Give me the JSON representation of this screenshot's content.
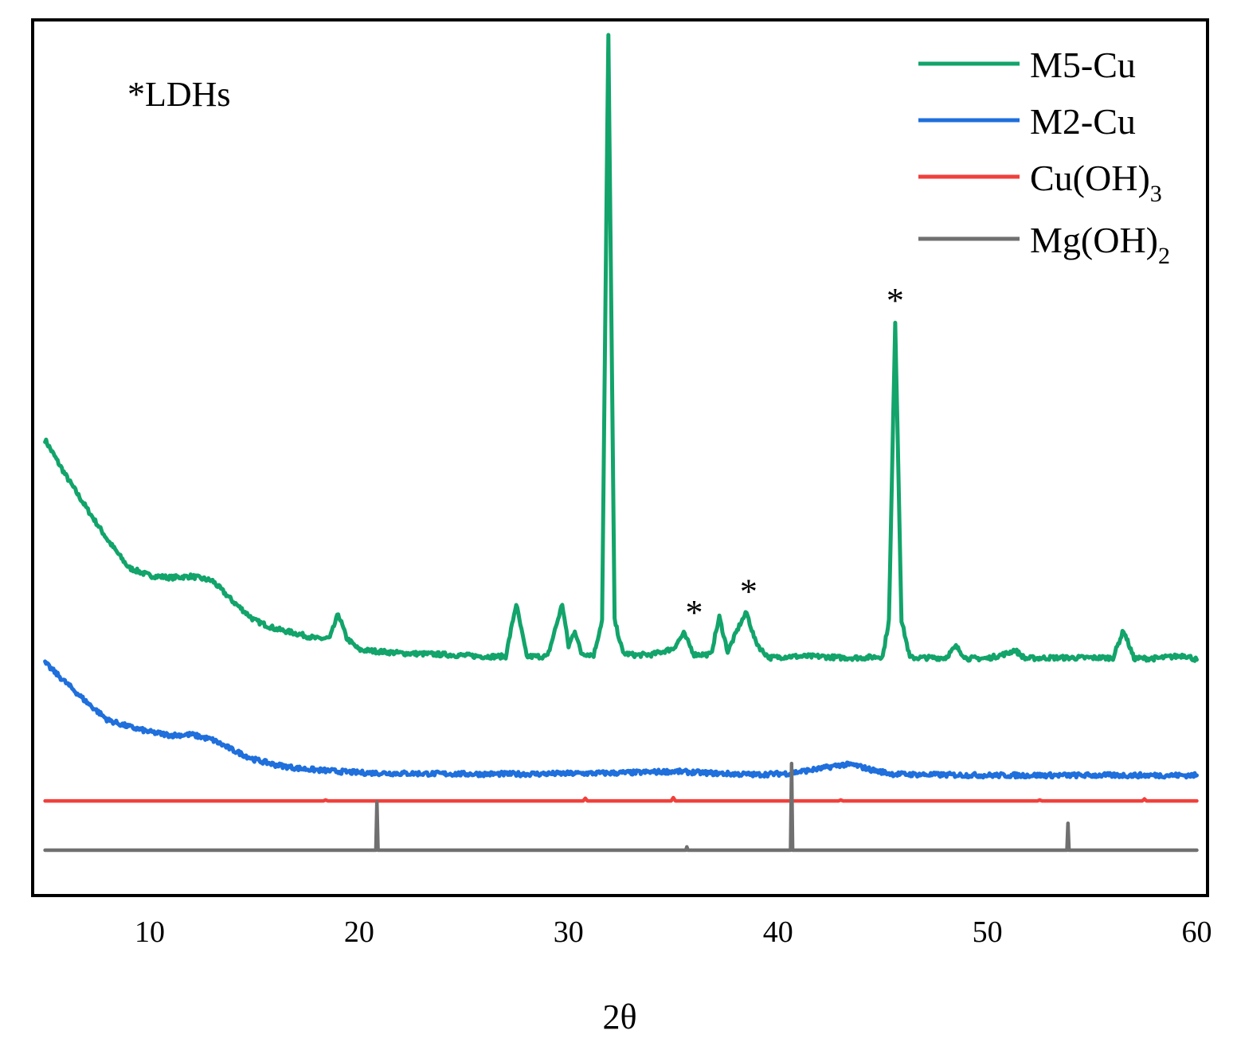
{
  "chart_data": {
    "type": "line",
    "xlabel": "2θ",
    "ylabel": "",
    "xlim": [
      5,
      60
    ],
    "xticks": [
      10,
      20,
      30,
      40,
      50,
      60
    ],
    "grid": false,
    "legend_position": "top-right",
    "note": "*LDHs",
    "annotations": [
      {
        "text": "*",
        "x": 36.0
      },
      {
        "text": "*",
        "x": 38.6
      },
      {
        "text": "*",
        "x": 45.6
      }
    ],
    "series": [
      {
        "name": "M5-Cu",
        "sub": "",
        "color": "#12a46a",
        "baseline_y": 2.0,
        "x": [
          5.0,
          6.0,
          7.0,
          8.0,
          9.0,
          10.0,
          11.0,
          12.0,
          13.0,
          14.0,
          15.0,
          16.0,
          17.0,
          18.0,
          18.6,
          19.0,
          19.4,
          20.0,
          22.0,
          24.0,
          26.0,
          27.0,
          27.5,
          28.0,
          29.0,
          29.7,
          30.0,
          30.3,
          30.6,
          31.2,
          31.6,
          31.9,
          32.2,
          32.6,
          33.2,
          34.0,
          35.0,
          35.5,
          36.0,
          36.8,
          37.2,
          37.6,
          38.2,
          38.5,
          38.9,
          39.2,
          39.6,
          40.5,
          42.0,
          43.0,
          44.0,
          45.0,
          45.3,
          45.6,
          45.9,
          46.3,
          47.0,
          48.0,
          48.5,
          49.0,
          50.0,
          51.0,
          51.3,
          51.8,
          53.0,
          54.0,
          55.0,
          56.0,
          56.5,
          57.0,
          58.0,
          59.0,
          59.4,
          60.0
        ],
        "y": [
          6.25,
          5.7,
          5.2,
          4.72,
          4.3,
          4.18,
          4.15,
          4.17,
          4.1,
          3.78,
          3.5,
          3.37,
          3.3,
          3.22,
          3.23,
          3.6,
          3.23,
          3.05,
          3.0,
          2.98,
          2.95,
          2.95,
          3.75,
          2.95,
          2.95,
          3.75,
          3.1,
          3.35,
          3.0,
          2.97,
          3.5,
          12.4,
          3.5,
          3.0,
          2.97,
          2.98,
          3.07,
          3.3,
          2.98,
          2.98,
          3.55,
          3.02,
          3.45,
          3.62,
          3.2,
          3.05,
          2.93,
          2.95,
          2.95,
          2.93,
          2.93,
          2.95,
          3.5,
          8.05,
          3.5,
          2.93,
          2.93,
          2.93,
          3.1,
          2.92,
          2.92,
          3.0,
          3.05,
          2.92,
          2.93,
          2.93,
          2.93,
          2.93,
          3.35,
          2.92,
          2.92,
          2.95,
          2.97,
          2.9
        ]
      },
      {
        "name": "M2-Cu",
        "sub": "",
        "color": "#1f6fdc",
        "baseline_y": 1.2,
        "x": [
          5.0,
          6.0,
          7.0,
          8.0,
          9.0,
          10.0,
          11.0,
          12.0,
          13.0,
          14.0,
          15.0,
          16.0,
          17.0,
          18.0,
          19.0,
          20.0,
          22.0,
          25.0,
          28.0,
          31.0,
          33.0,
          35.0,
          37.0,
          39.0,
          40.5,
          42.0,
          43.0,
          43.6,
          44.5,
          45.5,
          47.0,
          50.0,
          53.0,
          56.0,
          60.0
        ],
        "y": [
          2.85,
          2.55,
          2.25,
          1.98,
          1.88,
          1.8,
          1.75,
          1.76,
          1.68,
          1.52,
          1.38,
          1.3,
          1.25,
          1.22,
          1.2,
          1.18,
          1.17,
          1.16,
          1.16,
          1.17,
          1.18,
          1.2,
          1.17,
          1.15,
          1.17,
          1.24,
          1.3,
          1.3,
          1.22,
          1.16,
          1.15,
          1.14,
          1.14,
          1.14,
          1.14
        ]
      },
      {
        "name": "Cu(OH)",
        "sub": "3",
        "color": "#f0403c",
        "baseline_y": 0.75,
        "x": [
          5.0,
          18.3,
          18.4,
          18.5,
          30.7,
          30.8,
          30.9,
          34.9,
          35.0,
          35.1,
          42.9,
          43.0,
          43.1,
          52.4,
          52.5,
          52.6,
          57.4,
          57.5,
          57.6,
          60.0
        ],
        "y": [
          0.75,
          0.75,
          0.765,
          0.75,
          0.75,
          0.79,
          0.75,
          0.75,
          0.8,
          0.75,
          0.75,
          0.765,
          0.75,
          0.75,
          0.765,
          0.75,
          0.75,
          0.78,
          0.75,
          0.75
        ]
      },
      {
        "name": "Mg(OH)",
        "sub": "2",
        "color": "#707070",
        "baseline_y": 0.0,
        "x": [
          5.0,
          20.8,
          20.85,
          20.9,
          35.6,
          35.65,
          35.7,
          40.6,
          40.65,
          40.7,
          53.8,
          53.85,
          53.9,
          60.0
        ],
        "y": [
          0.0,
          0.0,
          0.73,
          0.0,
          0.0,
          0.05,
          0.0,
          0.0,
          1.32,
          0.0,
          0.0,
          0.41,
          0.0,
          0.0
        ]
      }
    ]
  }
}
